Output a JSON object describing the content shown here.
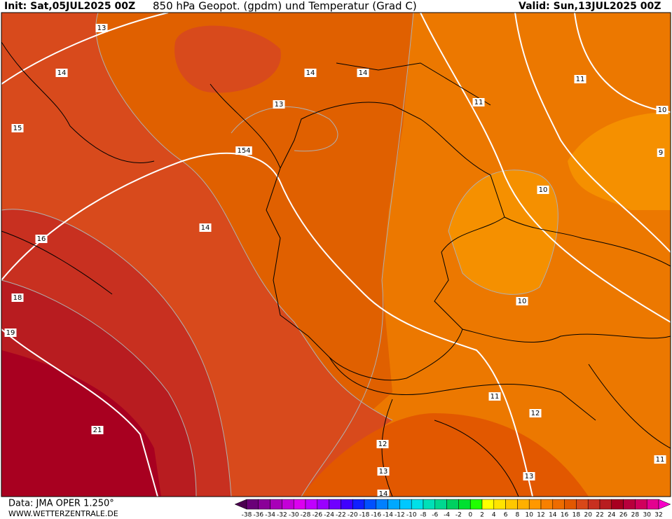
{
  "header": {
    "init": "Init: Sat,05JUL2025 00Z",
    "title": "850 hPa Geopot. (gpdm) und Temperatur (Grad C)",
    "valid": "Valid: Sun,13JUL2025 00Z"
  },
  "footer": {
    "source": "Data: JMA OPER 1.250°",
    "website": "WWW.WETTERZENTRALE.DE"
  },
  "colorbar": {
    "labels": [
      -38,
      -36,
      -34,
      -32,
      -30,
      -28,
      -26,
      -24,
      -22,
      -20,
      -18,
      -16,
      -14,
      -12,
      -10,
      -8,
      -6,
      -4,
      -2,
      0,
      2,
      4,
      6,
      8,
      10,
      12,
      14,
      16,
      18,
      20,
      22,
      24,
      26,
      28,
      30,
      32
    ],
    "colors": [
      "#4b0050",
      "#6a0078",
      "#8a0098",
      "#a800b8",
      "#c400d8",
      "#dc00f0",
      "#c000ff",
      "#9a00ff",
      "#7000ff",
      "#4000ff",
      "#1020ff",
      "#0050ff",
      "#0080ff",
      "#00a8ff",
      "#00c8ff",
      "#00e0e8",
      "#00e0b8",
      "#00d890",
      "#00d060",
      "#00e030",
      "#20ff00",
      "#ffff00",
      "#ffe400",
      "#ffc800",
      "#ffb000",
      "#ff9800",
      "#f88000",
      "#ee6c00",
      "#e25800",
      "#d84818",
      "#c83020",
      "#b81c20",
      "#a80020",
      "#b8003c",
      "#d0005c",
      "#e40090",
      "#f800c8"
    ]
  },
  "contour_labels": [
    13,
    14,
    14,
    14,
    15,
    13,
    154,
    11,
    11,
    10,
    9,
    10,
    14,
    16,
    18,
    19,
    10,
    11,
    12,
    12,
    21,
    13,
    13,
    14,
    11
  ]
}
